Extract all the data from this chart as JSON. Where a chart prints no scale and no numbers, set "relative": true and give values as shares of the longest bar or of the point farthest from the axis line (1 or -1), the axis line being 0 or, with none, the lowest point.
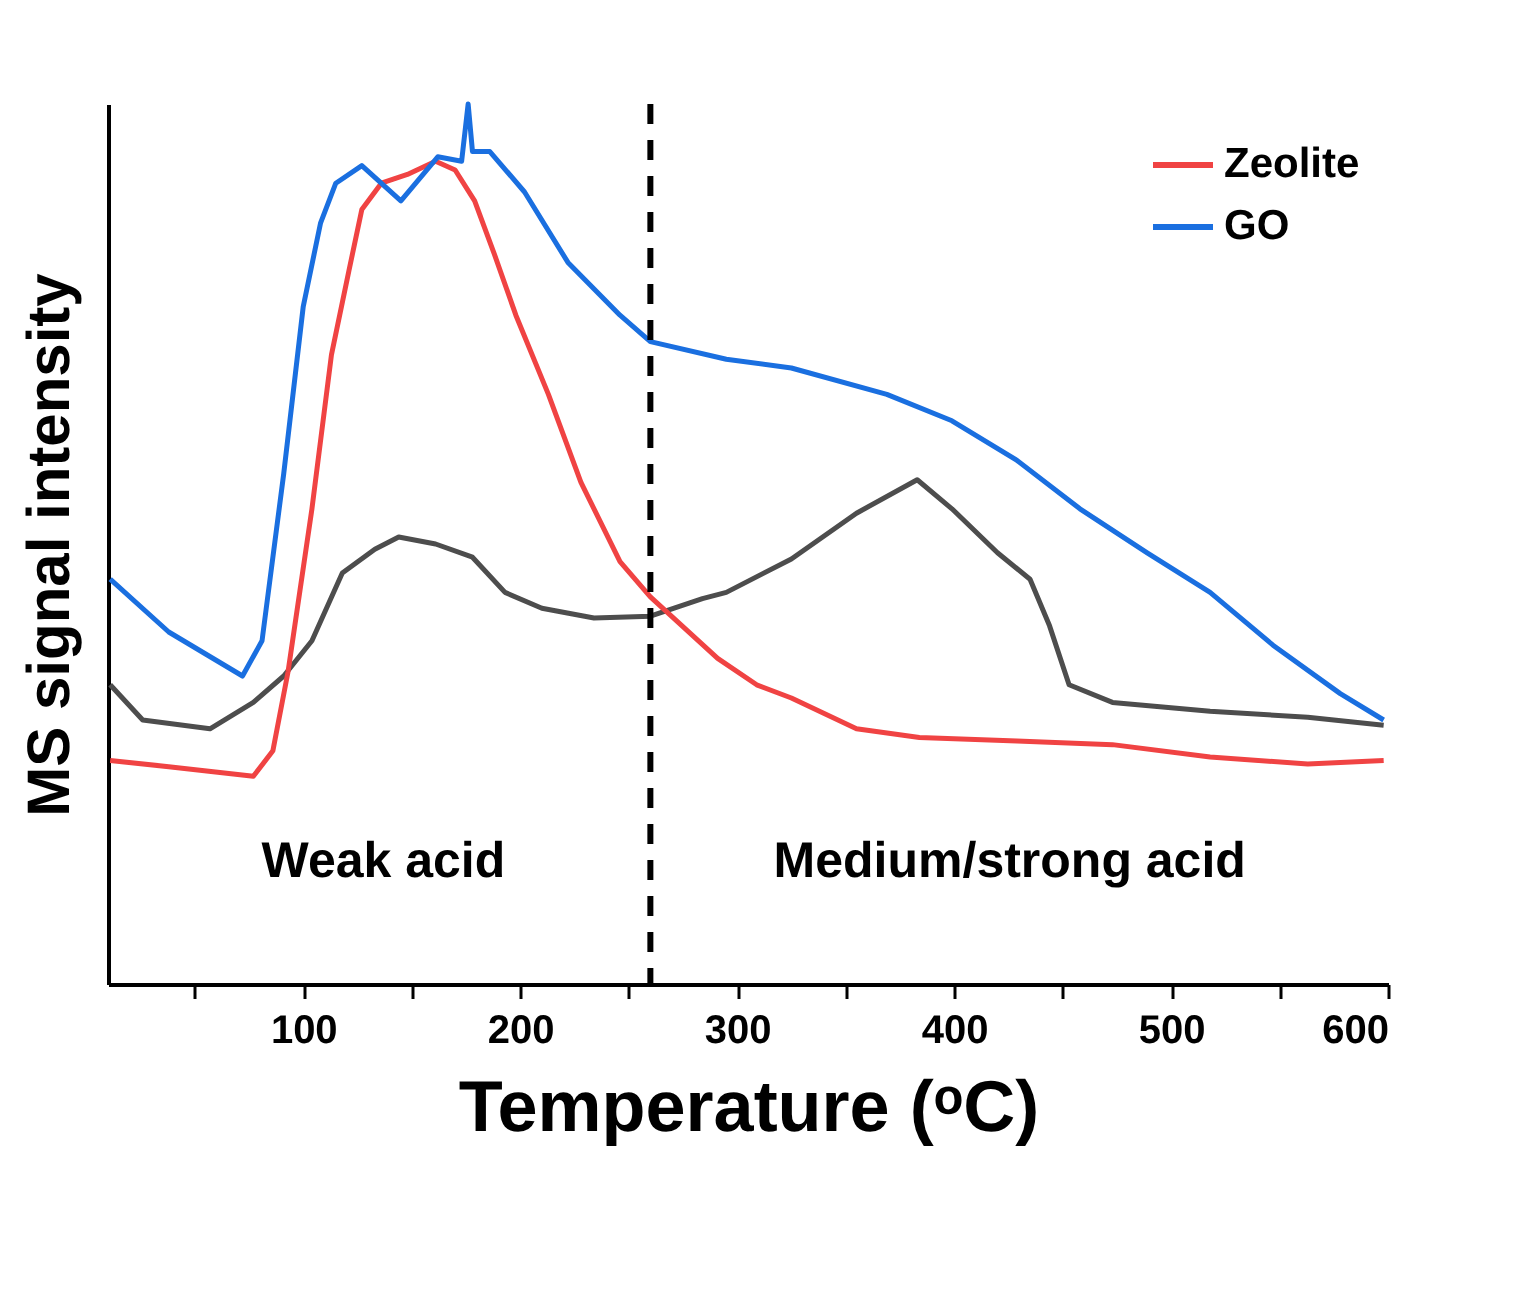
{
  "chart_data": {
    "type": "line",
    "relative": true,
    "xlabel": "Temperature (ᵒC)",
    "ylabel": "MS signal intensity",
    "xlim": [
      10,
      600
    ],
    "xticks": [
      {
        "value": 50,
        "label": null
      },
      100,
      {
        "value": 150,
        "label": null
      },
      200,
      {
        "value": 250,
        "label": null
      },
      300,
      {
        "value": 350,
        "label": null
      },
      400,
      {
        "value": 450,
        "label": null
      },
      500,
      {
        "value": 550,
        "label": null
      },
      600
    ],
    "legend": "top right",
    "annotations": [
      "Weak acid",
      "Medium/strong acid"
    ],
    "ref_lines": [
      {
        "axis": "x",
        "value": 260,
        "color": "#000000",
        "line_style": "dashed"
      }
    ],
    "series": [
      {
        "color": "#4d4d4d",
        "x": [
          11,
          26,
          57,
          77,
          91,
          104,
          118,
          133,
          144,
          161,
          178,
          193,
          210,
          234,
          260,
          284,
          295,
          325,
          355,
          383,
          399,
          420,
          435,
          444,
          453,
          473,
          518,
          563,
          598
        ],
        "values": [
          0.34,
          0.3,
          0.29,
          0.32,
          0.35,
          0.39,
          0.467,
          0.494,
          0.508,
          0.5,
          0.485,
          0.445,
          0.427,
          0.416,
          0.418,
          0.438,
          0.445,
          0.483,
          0.535,
          0.573,
          0.54,
          0.49,
          0.46,
          0.407,
          0.34,
          0.32,
          0.31,
          0.303,
          0.294
        ]
      },
      {
        "name": "Zeolite",
        "color": "#f04343",
        "x": [
          11,
          38,
          77,
          86,
          93,
          104,
          113,
          121,
          127,
          136,
          148,
          161,
          170,
          179,
          188,
          198,
          213,
          228,
          246,
          260,
          291,
          309,
          325,
          355,
          384,
          429,
          473,
          518,
          563,
          598
        ],
        "values": [
          0.254,
          0.247,
          0.236,
          0.265,
          0.355,
          0.54,
          0.715,
          0.81,
          0.88,
          0.91,
          0.92,
          0.935,
          0.925,
          0.89,
          0.83,
          0.76,
          0.67,
          0.57,
          0.48,
          0.44,
          0.37,
          0.34,
          0.325,
          0.29,
          0.28,
          0.276,
          0.272,
          0.258,
          0.25,
          0.254
        ]
      },
      {
        "name": "GO",
        "color": "#1a6fe0",
        "x": [
          11,
          38,
          72,
          81,
          91,
          100,
          108,
          115,
          127,
          145,
          162,
          173,
          176,
          178,
          186,
          202,
          222,
          246,
          260,
          295,
          325,
          369,
          399,
          429,
          458,
          489,
          518,
          547,
          578,
          598
        ],
        "values": [
          0.46,
          0.4,
          0.35,
          0.39,
          0.58,
          0.77,
          0.865,
          0.91,
          0.93,
          0.89,
          0.94,
          0.935,
          1.0,
          0.946,
          0.946,
          0.9,
          0.82,
          0.76,
          0.73,
          0.71,
          0.7,
          0.67,
          0.64,
          0.595,
          0.54,
          0.49,
          0.445,
          0.385,
          0.33,
          0.3
        ]
      }
    ]
  }
}
